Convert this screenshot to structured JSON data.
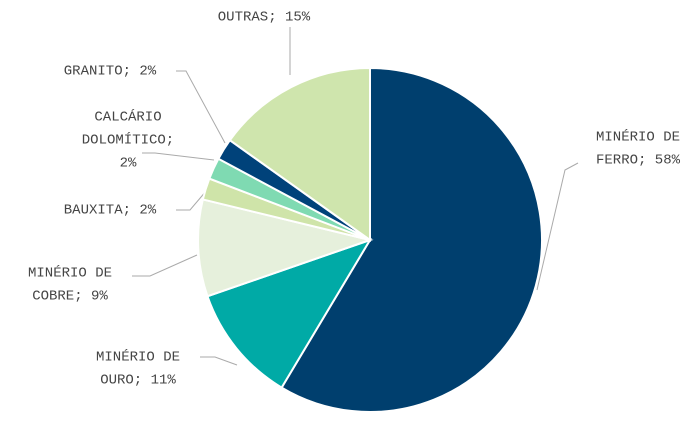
{
  "chart_data": {
    "type": "pie",
    "labels": [
      [
        "MINÉRIO DE",
        "FERRO; 58%"
      ],
      [
        "MINÉRIO DE",
        "OURO; 11%"
      ],
      [
        "MINÉRIO DE",
        "COBRE; 9%"
      ],
      [
        "BAUXITA; 2%"
      ],
      [
        "CALCÁRIO",
        "DOLOMÍTICO;",
        "2%"
      ],
      [
        "GRANITO; 2%"
      ],
      [
        "OUTRAS; 15%"
      ]
    ],
    "values": [
      58,
      11,
      9,
      2,
      2,
      2,
      15
    ],
    "colors": [
      "#003f6e",
      "#00aaa6",
      "#e6f0dc",
      "#cfe4a9",
      "#7fdab2",
      "#00427a",
      "#cfe5ad"
    ]
  }
}
